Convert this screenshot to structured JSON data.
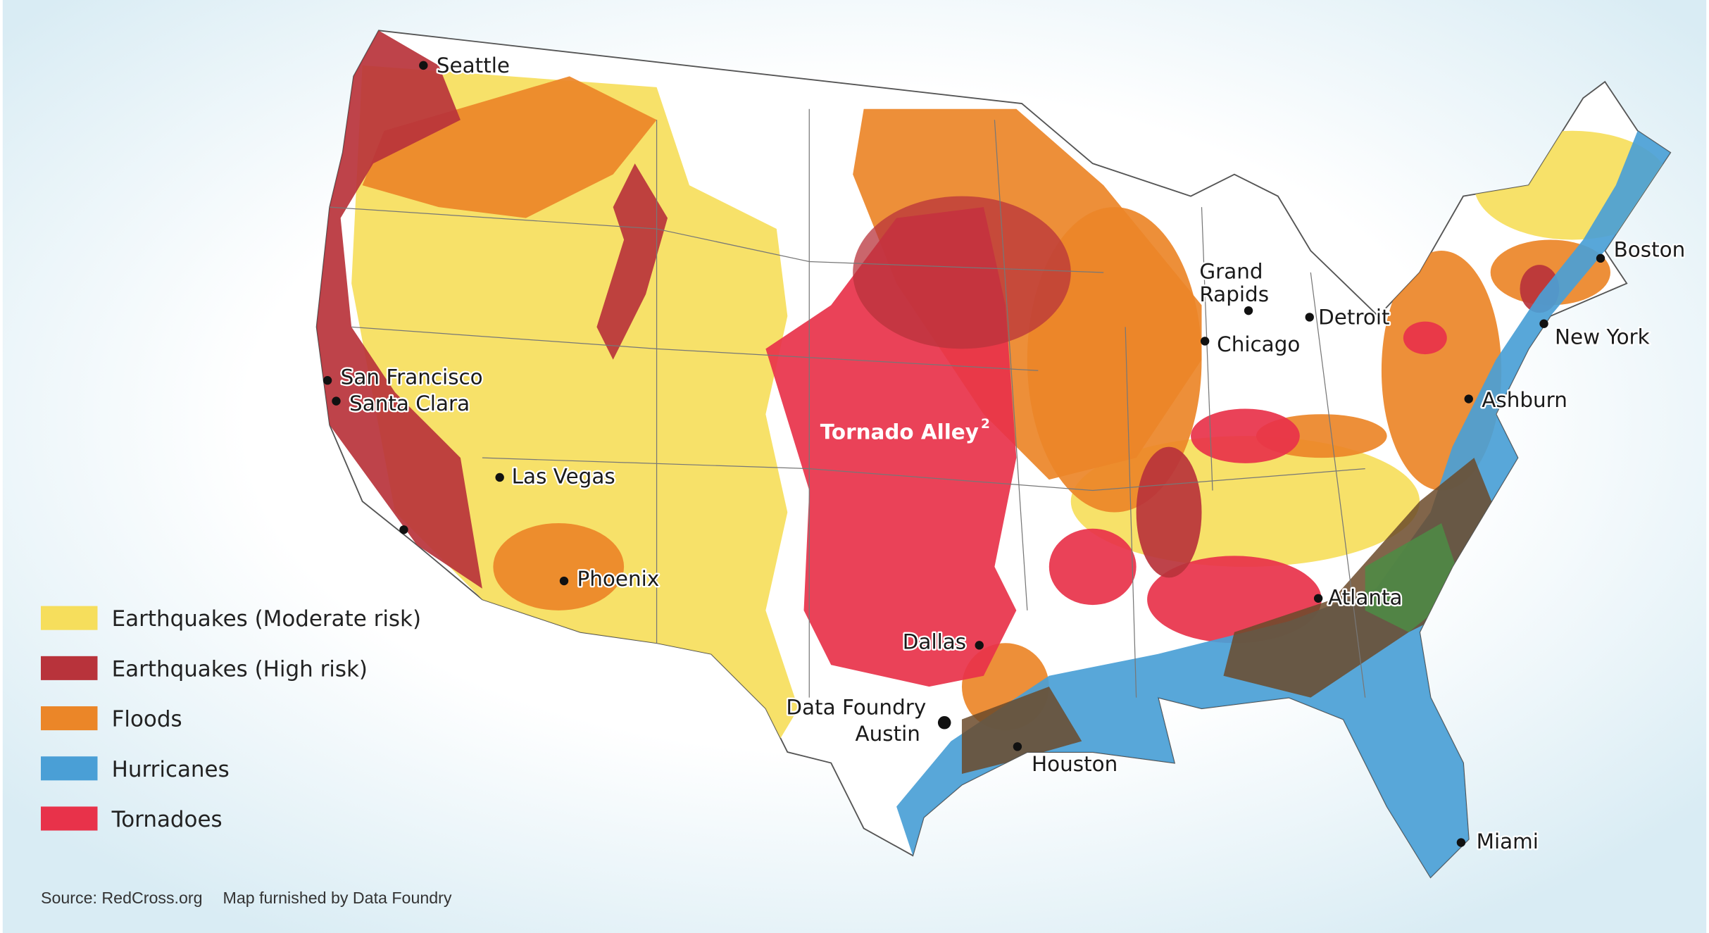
{
  "annotation": {
    "text": "Tornado Alley",
    "sup": "2"
  },
  "cities": [
    {
      "label": "Seattle"
    },
    {
      "label": "San Francisco"
    },
    {
      "label": "Santa Clara"
    },
    {
      "label": "Las Vegas"
    },
    {
      "label": "Phoenix"
    },
    {
      "label": "Dallas"
    },
    {
      "lines": [
        "Data Foundry",
        "Austin"
      ]
    },
    {
      "label": "Houston"
    },
    {
      "label": "Chicago"
    },
    {
      "lines": [
        "Grand",
        "Rapids"
      ]
    },
    {
      "label": "Detroit"
    },
    {
      "label": "Boston"
    },
    {
      "label": "New York"
    },
    {
      "label": "Ashburn"
    },
    {
      "label": "Atlanta"
    },
    {
      "label": "Miami"
    }
  ],
  "legend": [
    {
      "label": "Earthquakes (Moderate risk)",
      "color": "#f6de5c"
    },
    {
      "label": "Earthquakes (High risk)",
      "color": "#b8333b"
    },
    {
      "label": "Floods",
      "color": "#eb8628"
    },
    {
      "label": "Hurricanes",
      "color": "#4a9fd6"
    },
    {
      "label": "Tornadoes",
      "color": "#e8324a"
    }
  ],
  "footer": {
    "source": "Source: RedCross.org",
    "credit": "Map furnished by Data Foundry"
  }
}
